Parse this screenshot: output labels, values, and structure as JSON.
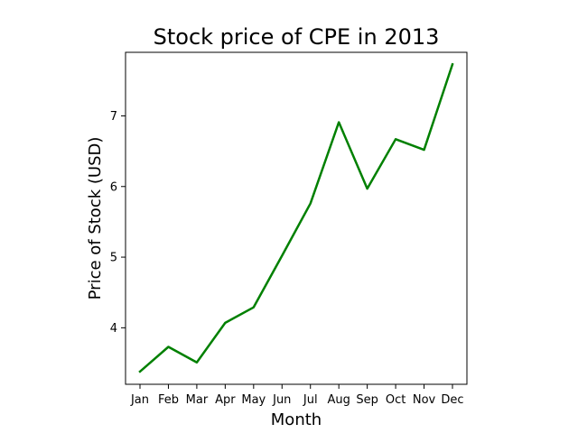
{
  "chart_data": {
    "type": "line",
    "title": "Stock price of CPE in 2013",
    "xlabel": "Month",
    "ylabel": "Price of Stock (USD)",
    "categories": [
      "Jan",
      "Feb",
      "Mar",
      "Apr",
      "May",
      "Jun",
      "Jul",
      "Aug",
      "Sep",
      "Oct",
      "Nov",
      "Dec"
    ],
    "series": [
      {
        "color": "#008000",
        "values": [
          3.38,
          3.73,
          3.51,
          4.07,
          4.29,
          5.02,
          5.76,
          6.91,
          5.97,
          6.67,
          6.52,
          7.73
        ]
      }
    ],
    "ylim": [
      3.2,
      7.9
    ],
    "yticks": [
      4,
      5,
      6,
      7
    ],
    "grid": false,
    "legend": "none"
  }
}
